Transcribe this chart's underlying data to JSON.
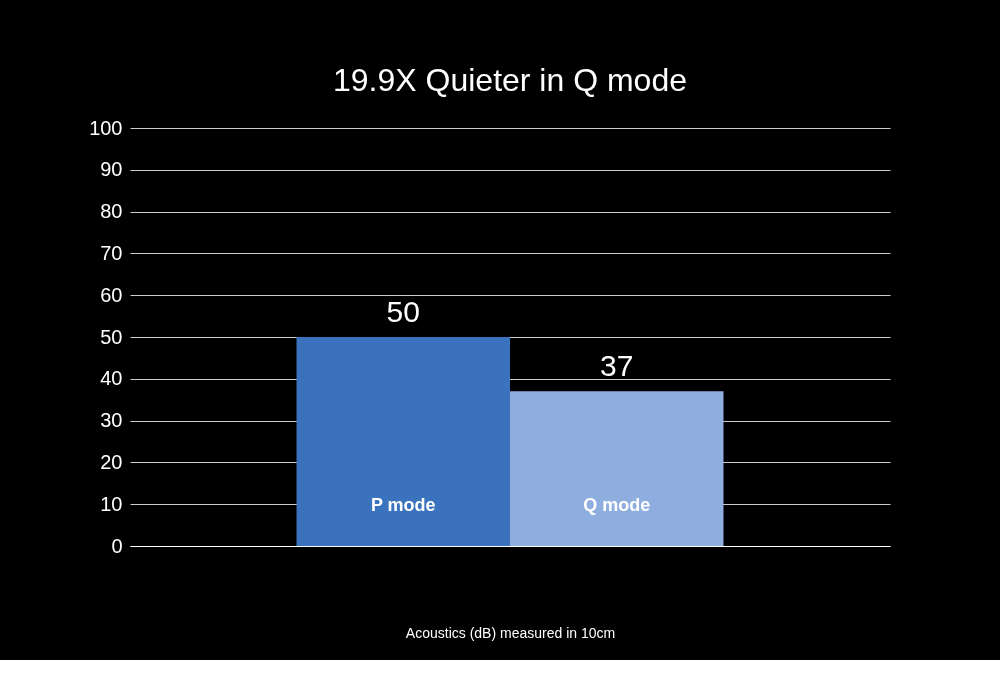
{
  "chart_data": {
    "type": "bar",
    "title": "19.9X Quieter in Q mode",
    "xlabel": "Acoustics (dB) measured in 10cm",
    "categories": [
      "P mode",
      "Q mode"
    ],
    "values": [
      50,
      37
    ],
    "colors": [
      "#3a72bd",
      "#8eaee0"
    ],
    "ylim": [
      0,
      100
    ],
    "yticks": [
      0,
      10,
      20,
      30,
      40,
      50,
      60,
      70,
      80,
      90,
      100
    ],
    "grid": "y",
    "data_labels": true
  }
}
